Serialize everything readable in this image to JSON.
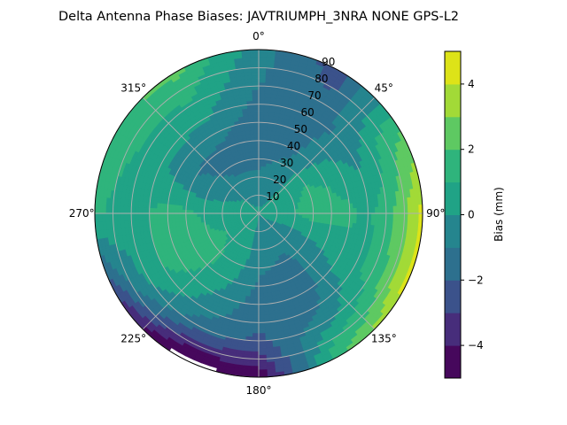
{
  "chart_data": {
    "type": "heatmap",
    "projection": "polar",
    "title": "Delta Antenna Phase Biases: JAVTRIUMPH_3NRA NONE GPS-L2",
    "theta_zero": "top",
    "theta_direction": "clockwise",
    "theta_ticks": [
      "0°",
      "45°",
      "90°",
      "135°",
      "180°",
      "225°",
      "270°",
      "315°"
    ],
    "r_ticks": [
      "10",
      "20",
      "30",
      "40",
      "50",
      "60",
      "70",
      "80",
      "90"
    ],
    "r_range": [
      0,
      90
    ],
    "grid": true,
    "colorbar": {
      "label": "Bias (mm)",
      "levels": [
        -5,
        -4,
        -3,
        -2,
        -1,
        0,
        1,
        2,
        3,
        4,
        5
      ],
      "ticks": [
        "−4",
        "−2",
        "0",
        "2",
        "4"
      ],
      "tick_values": [
        -4,
        -2,
        0,
        2,
        4
      ],
      "colormap": "viridis",
      "colors": [
        "#46085c",
        "#472d7b",
        "#3b528b",
        "#2d708e",
        "#25858e",
        "#20a386",
        "#2fb47c",
        "#5ec962",
        "#a2da37",
        "#dde318"
      ]
    },
    "azimuth_deg": [
      0,
      30,
      60,
      90,
      120,
      150,
      180,
      210,
      240,
      270,
      300,
      330
    ],
    "zenith_deg": [
      0,
      10,
      20,
      30,
      40,
      50,
      60,
      70,
      80,
      90
    ],
    "values_mm": [
      [
        0.2,
        -0.3,
        -0.8,
        -1.3,
        -1.5,
        -1.5,
        -1.3,
        -1.0,
        -0.8,
        -0.6
      ],
      [
        0.2,
        -0.2,
        -0.5,
        -0.8,
        -1.2,
        -1.4,
        -1.5,
        -1.6,
        -2.2,
        -2.5
      ],
      [
        0.3,
        0.5,
        0.8,
        1.0,
        0.8,
        0.3,
        -0.3,
        0.5,
        1.5,
        2.0
      ],
      [
        0.3,
        0.5,
        1.0,
        1.5,
        1.5,
        1.2,
        0.8,
        1.5,
        2.8,
        4.5
      ],
      [
        0.2,
        0.0,
        -0.3,
        -0.2,
        0.0,
        0.5,
        0.8,
        1.3,
        2.5,
        4.2
      ],
      [
        0.0,
        -0.5,
        -0.8,
        -1.2,
        -1.5,
        -1.6,
        -1.2,
        -0.5,
        0.8,
        2.0
      ],
      [
        0.0,
        -0.3,
        -0.5,
        -0.8,
        -1.2,
        -1.5,
        -1.8,
        -2.2,
        -3.5,
        -4.8
      ],
      [
        0.3,
        0.5,
        0.8,
        0.8,
        0.5,
        0.0,
        -0.5,
        -1.5,
        -3.5,
        -5.5
      ],
      [
        0.5,
        0.8,
        1.0,
        1.3,
        1.6,
        1.5,
        1.0,
        0.3,
        -1.0,
        -3.0
      ],
      [
        0.5,
        0.6,
        0.6,
        0.8,
        1.3,
        1.5,
        1.0,
        0.5,
        0.8,
        1.2
      ],
      [
        0.3,
        0.2,
        -0.3,
        -0.8,
        -1.0,
        -0.5,
        0.3,
        0.8,
        1.3,
        1.8
      ],
      [
        0.2,
        -0.2,
        -0.8,
        -1.3,
        -1.2,
        -0.6,
        0.2,
        0.8,
        1.5,
        2.3
      ]
    ]
  }
}
